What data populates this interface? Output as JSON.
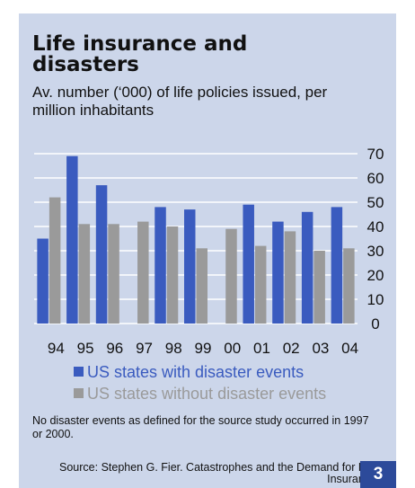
{
  "title": "Life insurance and disasters",
  "subtitle": "Av. number (‘000) of life policies issued, per million inhabitants",
  "note": "No disaster events as defined for the source study occurred in 1997 or 2000.",
  "source": "Source: Stephen G. Fier. Catastrophes and the Demand for Life Insurance",
  "page_number": "3",
  "colors": {
    "panel": "#ccd6ea",
    "gridline": "#ffffff",
    "badge": "#2c4a9a"
  },
  "chart_data": {
    "type": "bar",
    "categories": [
      "94",
      "95",
      "96",
      "97",
      "98",
      "99",
      "00",
      "01",
      "02",
      "03",
      "04"
    ],
    "series": [
      {
        "name": "US states with disaster events",
        "color": "#3a5bbf",
        "values": [
          35,
          69,
          57,
          null,
          48,
          47,
          null,
          49,
          42,
          46,
          48
        ]
      },
      {
        "name": "US states without disaster events",
        "color": "#9a9a9a",
        "values": [
          52,
          41,
          41,
          42,
          40,
          31,
          39,
          32,
          38,
          30,
          31
        ]
      }
    ],
    "ylim": [
      0,
      70
    ],
    "yticks": [
      "0",
      "10",
      "20",
      "30",
      "40",
      "50",
      "60",
      "70"
    ],
    "y_axis_position": "right",
    "grid": true,
    "legend_position": "bottom"
  }
}
